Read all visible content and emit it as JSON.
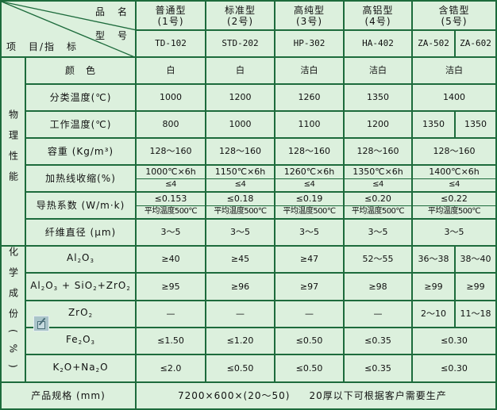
{
  "header": {
    "product_name_label": "品　名",
    "model_label": "型　号",
    "item_label": "项　目/指　标",
    "products": [
      {
        "name": "普通型",
        "number": "(1号)",
        "models": [
          "TD-102"
        ]
      },
      {
        "name": "标准型",
        "number": "(2号)",
        "models": [
          "STD-202"
        ]
      },
      {
        "name": "高纯型",
        "number": "(3号)",
        "models": [
          "HP-302"
        ]
      },
      {
        "name": "高铝型",
        "number": "(4号)",
        "models": [
          "HA-402"
        ]
      },
      {
        "name": "含锆型",
        "number": "(5号)",
        "models": [
          "ZA-502",
          "ZA-602"
        ]
      }
    ]
  },
  "physical": {
    "category": "物理性能",
    "rows": [
      {
        "label": "颜　色",
        "values": [
          "白",
          "白",
          "洁白",
          "洁白",
          "洁白"
        ]
      },
      {
        "label": "分类温度(℃)",
        "values": [
          "1000",
          "1200",
          "1260",
          "1350",
          "1400"
        ]
      },
      {
        "label": "工作温度(℃)",
        "values": [
          "800",
          "1000",
          "1100",
          "1200",
          "1350",
          "1350"
        ]
      },
      {
        "label": "容重 (Kg/m³)",
        "values": [
          "128～160",
          "128～160",
          "128～160",
          "128～160",
          "128～160"
        ]
      },
      {
        "label": "加热线收缩(%)",
        "values": [
          [
            "1000℃×6h",
            "≤4"
          ],
          [
            "1150℃×6h",
            "≤4"
          ],
          [
            "1260℃×6h",
            "≤4"
          ],
          [
            "1350℃×6h",
            "≤4"
          ],
          [
            "1400℃×6h",
            "≤4"
          ]
        ]
      },
      {
        "label": "导热系数 (W/m·k)",
        "split": true,
        "values": [
          [
            "≤0.153",
            "平均温度500℃"
          ],
          [
            "≤0.18",
            "平均温度500℃"
          ],
          [
            "≤0.19",
            "平均温度500℃"
          ],
          [
            "≤0.20",
            "平均温度500℃"
          ],
          [
            "≤0.22",
            "平均温度500℃"
          ]
        ]
      },
      {
        "label": "纤维直径 (μm)",
        "values": [
          "3～5",
          "3～5",
          "3～5",
          "3～5",
          "3～5"
        ]
      }
    ]
  },
  "chemical": {
    "category": "化学成份(%)",
    "rows": [
      {
        "label": [
          [
            "t",
            "Al"
          ],
          [
            "s",
            "2"
          ],
          [
            "t",
            "O"
          ],
          [
            "s",
            "3"
          ]
        ],
        "values": [
          "≥40",
          "≥45",
          "≥47",
          "52～55",
          "36～38",
          "38～40"
        ]
      },
      {
        "label": [
          [
            "t",
            "Al"
          ],
          [
            "s",
            "2"
          ],
          [
            "t",
            "O"
          ],
          [
            "s",
            "3"
          ],
          [
            "t",
            " + SiO"
          ],
          [
            "s",
            "2"
          ],
          [
            "t",
            "+ZrO"
          ],
          [
            "s",
            "2"
          ]
        ],
        "values": [
          "≥95",
          "≥96",
          "≥97",
          "≥98",
          "≥99",
          "≥99"
        ]
      },
      {
        "label": [
          [
            "t",
            "ZrO"
          ],
          [
            "s",
            "2"
          ]
        ],
        "values": [
          "—",
          "—",
          "—",
          "—",
          "2～10",
          "11～18"
        ]
      },
      {
        "label": [
          [
            "t",
            "Fe"
          ],
          [
            "s",
            "2"
          ],
          [
            "t",
            "O"
          ],
          [
            "s",
            "3"
          ]
        ],
        "values": [
          "≤1.50",
          "≤1.20",
          "≤0.50",
          "≤0.35",
          "≤0.30"
        ]
      },
      {
        "label": [
          [
            "t",
            "K"
          ],
          [
            "s",
            "2"
          ],
          [
            "t",
            "O+Na"
          ],
          [
            "s",
            "2"
          ],
          [
            "t",
            "O"
          ]
        ],
        "values": [
          "≤2.0",
          "≤0.50",
          "≤0.50",
          "≤0.35",
          "≤0.30"
        ]
      }
    ]
  },
  "spec": {
    "label": "产品规格 (mm)",
    "size": "7200×600×(20～50)",
    "note": "20厚以下可根据客户需要生产"
  },
  "icons": {
    "edit_icon": "image-edit-icon"
  },
  "colors": {
    "background": "#dcf0dd",
    "border": "#1d6b3c"
  }
}
